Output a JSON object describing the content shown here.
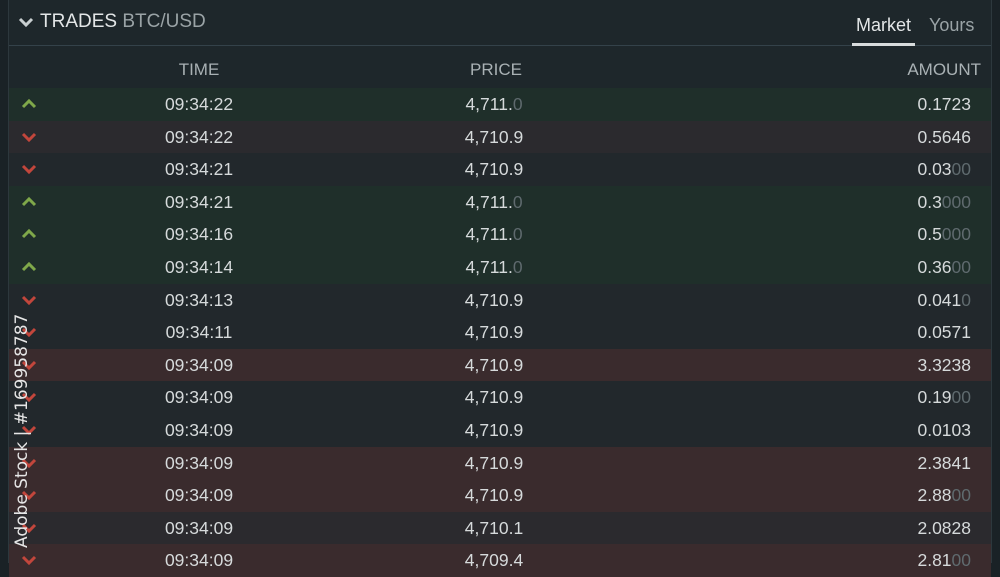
{
  "header": {
    "title": "TRADES",
    "pair": "BTC/USD",
    "tabs": [
      {
        "label": "Market",
        "active": true
      },
      {
        "label": "Yours",
        "active": false
      }
    ]
  },
  "columns": {
    "time": "TIME",
    "price": "PRICE",
    "amount": "AMOUNT"
  },
  "colors": {
    "up": "#7fa84a",
    "down": "#c2463c",
    "up_row": "#1f2f2a",
    "down_row_strong": "#3a2b2d"
  },
  "trades": [
    {
      "side": "up",
      "style": "",
      "time": "09:34:22",
      "price": "4,711.",
      "price_dim": "0",
      "amount": "0.1723",
      "amount_dim": ""
    },
    {
      "side": "down",
      "style": "mid",
      "time": "09:34:22",
      "price": "4,710.9",
      "price_dim": "",
      "amount": "0.5646",
      "amount_dim": ""
    },
    {
      "side": "down",
      "style": "",
      "time": "09:34:21",
      "price": "4,710.9",
      "price_dim": "",
      "amount": "0.03",
      "amount_dim": "00"
    },
    {
      "side": "up",
      "style": "",
      "time": "09:34:21",
      "price": "4,711.",
      "price_dim": "0",
      "amount": "0.3",
      "amount_dim": "000"
    },
    {
      "side": "up",
      "style": "",
      "time": "09:34:16",
      "price": "4,711.",
      "price_dim": "0",
      "amount": "0.5",
      "amount_dim": "000"
    },
    {
      "side": "up",
      "style": "",
      "time": "09:34:14",
      "price": "4,711.",
      "price_dim": "0",
      "amount": "0.36",
      "amount_dim": "00"
    },
    {
      "side": "down",
      "style": "",
      "time": "09:34:13",
      "price": "4,710.9",
      "price_dim": "",
      "amount": "0.041",
      "amount_dim": "0"
    },
    {
      "side": "down",
      "style": "",
      "time": "09:34:11",
      "price": "4,710.9",
      "price_dim": "",
      "amount": "0.0571",
      "amount_dim": ""
    },
    {
      "side": "down",
      "style": "big",
      "time": "09:34:09",
      "price": "4,710.9",
      "price_dim": "",
      "amount": "3.3238",
      "amount_dim": ""
    },
    {
      "side": "down",
      "style": "",
      "time": "09:34:09",
      "price": "4,710.9",
      "price_dim": "",
      "amount": "0.19",
      "amount_dim": "00"
    },
    {
      "side": "down",
      "style": "",
      "time": "09:34:09",
      "price": "4,710.9",
      "price_dim": "",
      "amount": "0.0103",
      "amount_dim": ""
    },
    {
      "side": "down",
      "style": "big",
      "time": "09:34:09",
      "price": "4,710.9",
      "price_dim": "",
      "amount": "2.3841",
      "amount_dim": ""
    },
    {
      "side": "down",
      "style": "big",
      "time": "09:34:09",
      "price": "4,710.9",
      "price_dim": "",
      "amount": "2.88",
      "amount_dim": "00"
    },
    {
      "side": "down",
      "style": "mid",
      "time": "09:34:09",
      "price": "4,710.1",
      "price_dim": "",
      "amount": "2.0828",
      "amount_dim": ""
    },
    {
      "side": "down",
      "style": "big",
      "time": "09:34:09",
      "price": "4,709.4",
      "price_dim": "",
      "amount": "2.81",
      "amount_dim": "00"
    }
  ],
  "watermark": "Adobe Stock | #169958787"
}
